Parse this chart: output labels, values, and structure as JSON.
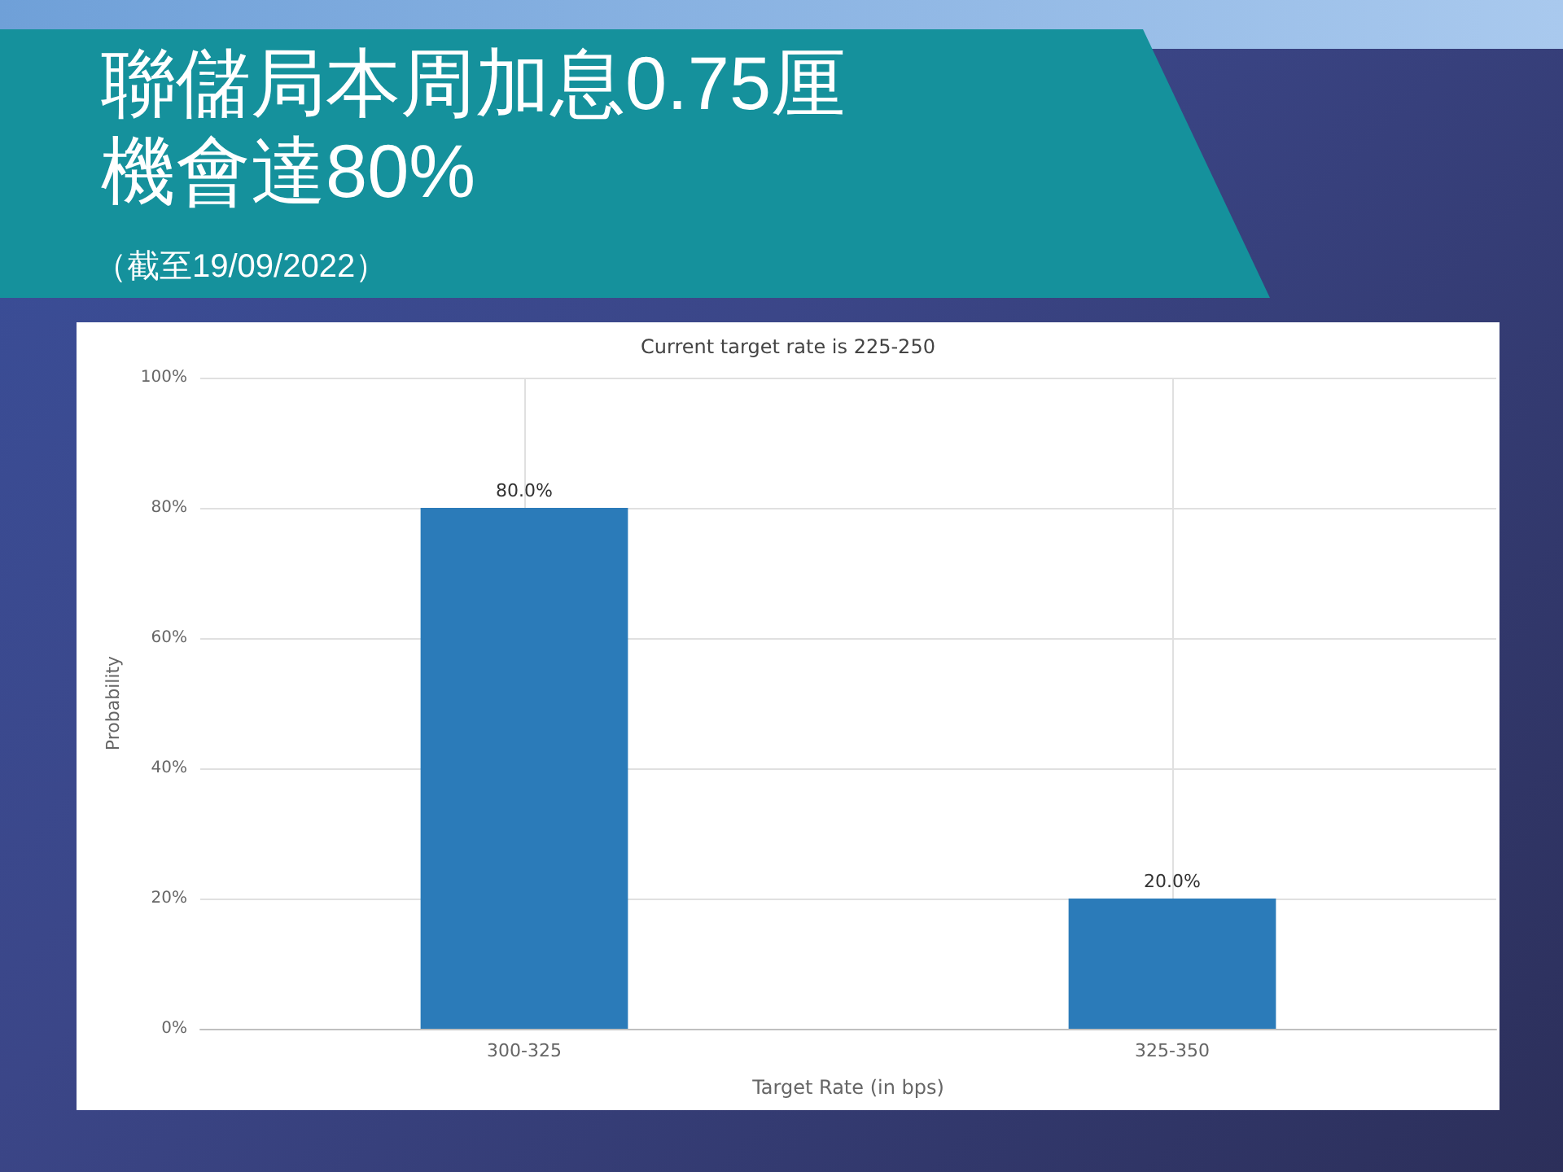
{
  "chart_data": {
    "type": "bar",
    "title": "聯儲局本周加息0.75厘機會達80%",
    "subtitle": "（截至19/09/2022）",
    "annotations": [
      "Current target rate is 225-250"
    ],
    "xlabel": "Target Rate (in bps)",
    "ylabel": "Probability",
    "categories": [
      "300-325",
      "325-350"
    ],
    "values": [
      80,
      20
    ],
    "value_labels": [
      "80.0%",
      "20.0%"
    ],
    "color": "#2b7bb9",
    "ylim": [
      0,
      100
    ],
    "yticks": [
      {
        "value": 0,
        "label": "0%"
      },
      {
        "value": 20,
        "label": "20%"
      },
      {
        "value": 40,
        "label": "40%"
      },
      {
        "value": 60,
        "label": "60%"
      },
      {
        "value": 80,
        "label": "80%"
      },
      {
        "value": 100,
        "label": "100%"
      }
    ],
    "grid": true
  }
}
